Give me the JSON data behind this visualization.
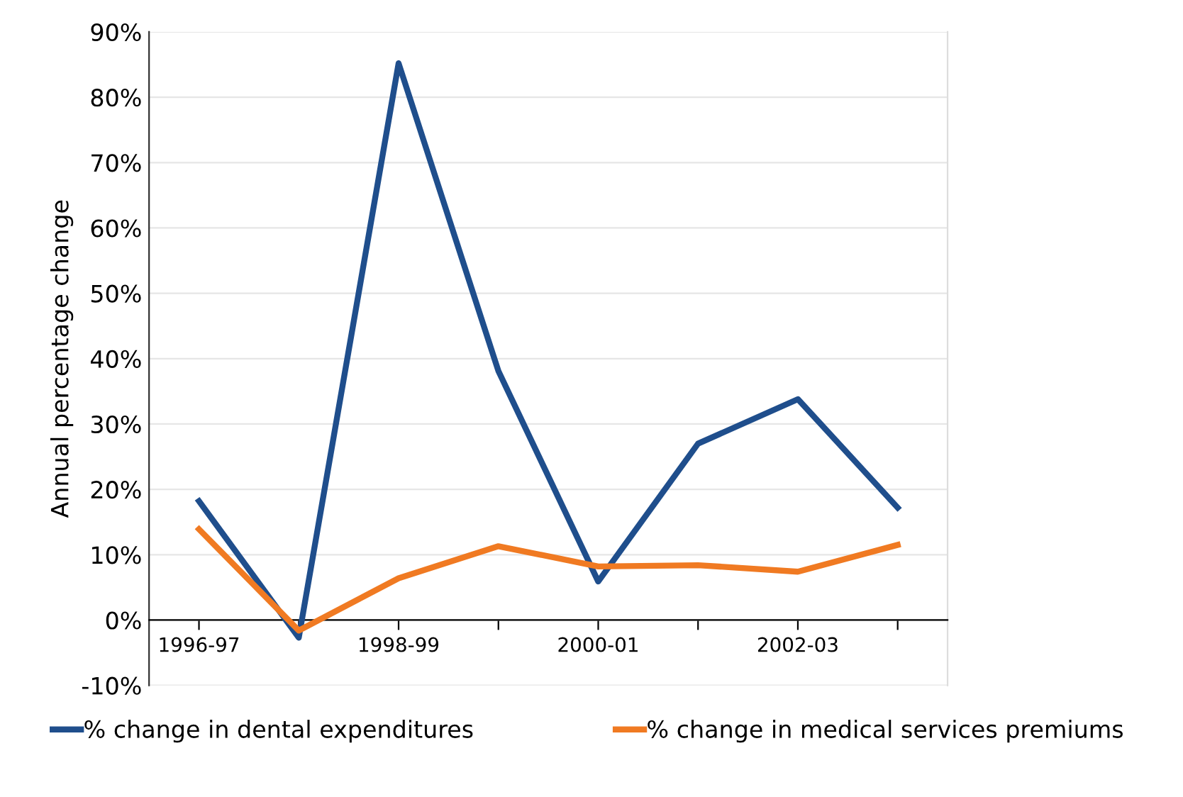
{
  "chart_data": {
    "type": "line",
    "ylabel": "Annual percentage change",
    "categories": [
      "1996-97",
      null,
      "1998-99",
      null,
      "2000-01",
      null,
      "2002-03",
      null
    ],
    "series": [
      {
        "name": "% change in dental expenditures",
        "color": "#1f4e8c",
        "values": [
          18.2,
          -2.7,
          85.2,
          38.1,
          5.9,
          27.0,
          33.8,
          17.2
        ]
      },
      {
        "name": "% change in medical services premiums",
        "color": "#f07a22",
        "values": [
          13.9,
          -1.6,
          6.4,
          11.3,
          8.2,
          8.4,
          7.4,
          11.5
        ]
      }
    ],
    "ylim": [
      -10,
      90
    ],
    "yticks": [
      {
        "value": -10,
        "label": "-10%"
      },
      {
        "value": 0,
        "label": "0%"
      },
      {
        "value": 10,
        "label": "10%"
      },
      {
        "value": 20,
        "label": "20%"
      },
      {
        "value": 30,
        "label": "30%"
      },
      {
        "value": 40,
        "label": "40%"
      },
      {
        "value": 50,
        "label": "50%"
      },
      {
        "value": 60,
        "label": "60%"
      },
      {
        "value": 70,
        "label": "70%"
      },
      {
        "value": 80,
        "label": "80%"
      },
      {
        "value": 90,
        "label": "90%"
      }
    ],
    "grid": "y",
    "legend": "bottom",
    "marker": "none",
    "line_style": "solid"
  }
}
